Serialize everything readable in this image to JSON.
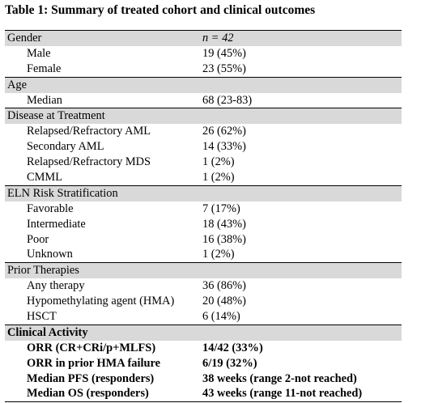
{
  "caption": "Table 1: Summary of treated cohort and clinical outcomes",
  "sections": [
    {
      "title": "Gender",
      "title_value": "n = 42",
      "rows": [
        {
          "label": "Male",
          "value": "19 (45%)"
        },
        {
          "label": "Female",
          "value": "23 (55%)"
        }
      ]
    },
    {
      "title": "Age",
      "title_value": "",
      "rows": [
        {
          "label": "Median",
          "value": "68 (23-83)"
        }
      ]
    },
    {
      "title": "Disease at Treatment",
      "title_value": "",
      "rows": [
        {
          "label": "Relapsed/Refractory AML",
          "value": "26 (62%)"
        },
        {
          "label": "Secondary AML",
          "value": "14 (33%)"
        },
        {
          "label": "Relapsed/Refractory MDS",
          "value": "1 (2%)"
        },
        {
          "label": "CMML",
          "value": "1 (2%)"
        }
      ]
    },
    {
      "title": "ELN Risk Stratification",
      "title_value": "",
      "rows": [
        {
          "label": "Favorable",
          "value": "7 (17%)"
        },
        {
          "label": "Intermediate",
          "value": "18 (43%)"
        },
        {
          "label": "Poor",
          "value": "16 (38%)"
        },
        {
          "label": "Unknown",
          "value": "1 (2%)"
        }
      ]
    },
    {
      "title": "Prior Therapies",
      "title_value": "",
      "rows": [
        {
          "label": "Any therapy",
          "value": "36 (86%)"
        },
        {
          "label": "Hypomethylating agent (HMA)",
          "value": "20 (48%)"
        },
        {
          "label": "HSCT",
          "value": "6 (14%)"
        }
      ]
    },
    {
      "title": "Clinical Activity",
      "title_value": "",
      "bold": true,
      "rows": [
        {
          "label": "ORR (CR+CRi/p+MLFS)",
          "value": "14/42 (33%)"
        },
        {
          "label": "ORR in prior HMA failure",
          "value": "6/19 (32%)"
        },
        {
          "label": "Median PFS (responders)",
          "value": "38 weeks (range 2-not reached)"
        },
        {
          "label": "Median OS (responders)",
          "value": "43 weeks (range 11-not reached)"
        }
      ]
    }
  ]
}
